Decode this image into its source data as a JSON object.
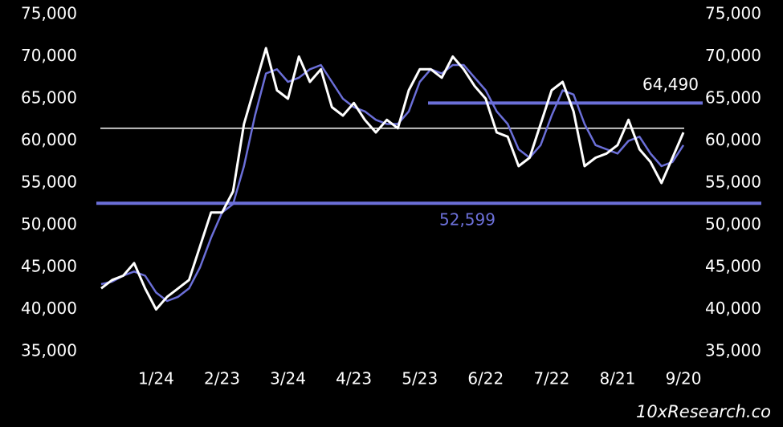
{
  "chart_data": {
    "type": "line",
    "categories": [
      null,
      null,
      null,
      null,
      null,
      "1/24",
      null,
      null,
      null,
      null,
      null,
      "2/23",
      null,
      null,
      null,
      null,
      null,
      "3/24",
      null,
      null,
      null,
      null,
      null,
      "4/23",
      null,
      null,
      null,
      null,
      null,
      "5/23",
      null,
      null,
      null,
      null,
      null,
      "6/22",
      null,
      null,
      null,
      null,
      null,
      "7/22",
      null,
      null,
      null,
      null,
      null,
      "8/21",
      null,
      null,
      null,
      null,
      null,
      "9/20"
    ],
    "series": [
      {
        "color": "#6b6fd8",
        "values": [
          43000,
          43300,
          44000,
          44500,
          44000,
          42000,
          41000,
          41500,
          42500,
          45000,
          48500,
          51500,
          52500,
          57000,
          63000,
          68000,
          68500,
          67000,
          67500,
          68500,
          69000,
          67000,
          65000,
          64000,
          63500,
          62500,
          62000,
          62000,
          63500,
          67000,
          68500,
          68000,
          69000,
          69000,
          67500,
          66000,
          63500,
          62000,
          59000,
          58000,
          59500,
          63000,
          66000,
          65500,
          62000,
          59500,
          59000,
          58500,
          60000,
          60500,
          58500,
          57000,
          57500,
          59500
        ]
      },
      {
        "color": "#ffffff",
        "values": [
          42500,
          43500,
          44000,
          45500,
          42500,
          40000,
          41500,
          42500,
          43500,
          47500,
          51500,
          51500,
          54000,
          62000,
          66500,
          71000,
          66000,
          65000,
          70000,
          67000,
          68500,
          64000,
          63000,
          64500,
          62500,
          61000,
          62500,
          61500,
          66000,
          68500,
          68500,
          67500,
          70000,
          68500,
          66500,
          65000,
          61000,
          60500,
          57000,
          58000,
          62000,
          66000,
          67000,
          63500,
          57000,
          58000,
          58500,
          59500,
          62500,
          59000,
          57500,
          55000,
          58000,
          61000
        ]
      }
    ],
    "reference_line": {
      "value": 61500,
      "color": "#ffffff"
    },
    "levels": [
      {
        "value": 52599,
        "label": "52,599",
        "color": "#6b6fd8"
      },
      {
        "value": 64490,
        "label": "64,490",
        "color": "#6b6fd8"
      }
    ],
    "ylim": [
      35000,
      75000
    ],
    "yticks": [
      {
        "value": 35000,
        "label": "35,000"
      },
      {
        "value": 40000,
        "label": "40,000"
      },
      {
        "value": 45000,
        "label": "45,000"
      },
      {
        "value": 50000,
        "label": "50,000"
      },
      {
        "value": 55000,
        "label": "55,000"
      },
      {
        "value": 60000,
        "label": "60,000"
      },
      {
        "value": 65000,
        "label": "65,000"
      },
      {
        "value": 70000,
        "label": "70,000"
      },
      {
        "value": 75000,
        "label": "75,000"
      }
    ],
    "watermark": "10xResearch.co"
  }
}
